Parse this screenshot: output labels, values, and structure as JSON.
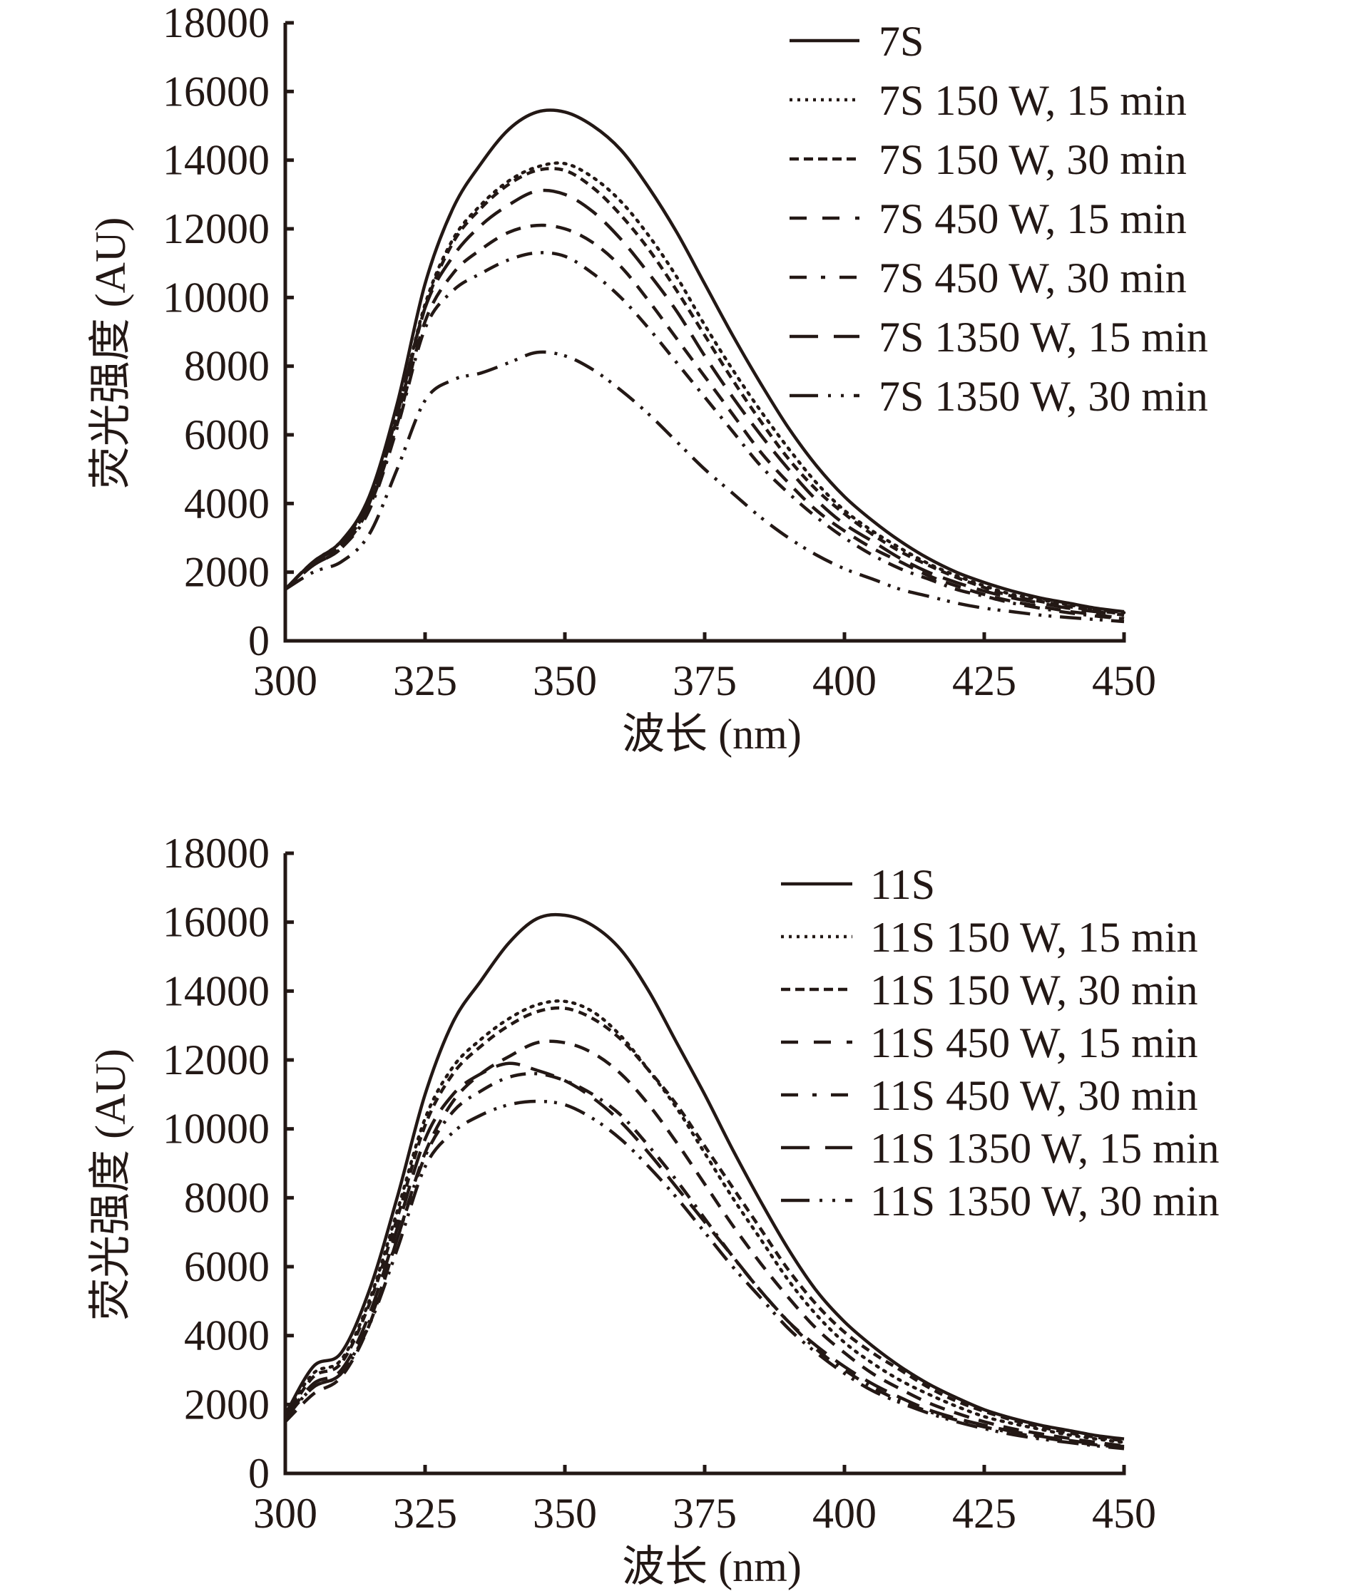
{
  "chart_data": [
    {
      "type": "line",
      "title": "",
      "xlabel": "波长 (nm)",
      "ylabel": "荧光强度 (AU)",
      "xlim": [
        300,
        450
      ],
      "ylim": [
        0,
        18000
      ],
      "xticks": [
        "300",
        "325",
        "350",
        "375",
        "400",
        "425",
        "450"
      ],
      "yticks": [
        "0",
        "2000",
        "4000",
        "6000",
        "8000",
        "10000",
        "12000",
        "14000",
        "16000",
        "18000"
      ],
      "grid": false,
      "legend_position": "top-right",
      "x": [
        300,
        305,
        310,
        315,
        320,
        325,
        330,
        335,
        340,
        345,
        350,
        355,
        360,
        365,
        370,
        375,
        380,
        385,
        390,
        395,
        400,
        405,
        410,
        415,
        420,
        425,
        430,
        435,
        440,
        445,
        450
      ],
      "series": [
        {
          "name": "7S",
          "style": "solid",
          "values": [
            1500,
            2300,
            2900,
            4200,
            6900,
            10400,
            12600,
            13900,
            14900,
            15400,
            15400,
            15000,
            14300,
            13200,
            11900,
            10400,
            8900,
            7500,
            6200,
            5100,
            4200,
            3500,
            2900,
            2400,
            2000,
            1700,
            1450,
            1250,
            1100,
            950,
            850
          ]
        },
        {
          "name": "7S 150 W, 15 min",
          "style": "dotted",
          "values": [
            1500,
            2300,
            2900,
            4100,
            6600,
            9800,
            11700,
            12700,
            13400,
            13800,
            13900,
            13500,
            12800,
            11800,
            10600,
            9200,
            7900,
            6700,
            5600,
            4600,
            3800,
            3200,
            2700,
            2250,
            1900,
            1600,
            1350,
            1200,
            1050,
            920,
            820
          ]
        },
        {
          "name": "7S 150 W, 30 min",
          "style": "short-dash",
          "values": [
            1500,
            2300,
            2800,
            4000,
            6500,
            9700,
            11600,
            12600,
            13300,
            13700,
            13700,
            13200,
            12400,
            11400,
            10200,
            8900,
            7600,
            6400,
            5300,
            4400,
            3700,
            3100,
            2600,
            2200,
            1850,
            1550,
            1300,
            1150,
            1000,
            880,
            780
          ]
        },
        {
          "name": "7S 450 W, 15 min",
          "style": "dash",
          "values": [
            1500,
            2200,
            2700,
            3900,
            6300,
            9300,
            10700,
            11400,
            11900,
            12100,
            12000,
            11600,
            10900,
            9900,
            8800,
            7700,
            6600,
            5500,
            4600,
            3800,
            3200,
            2700,
            2300,
            1900,
            1600,
            1350,
            1150,
            1000,
            860,
            760,
            650
          ]
        },
        {
          "name": "7S 450 W, 30 min",
          "style": "dash-dot",
          "values": [
            1500,
            2200,
            2700,
            3800,
            6200,
            9100,
            10200,
            10700,
            11100,
            11300,
            11200,
            10700,
            10000,
            9100,
            8100,
            7100,
            6100,
            5100,
            4300,
            3600,
            3000,
            2500,
            2100,
            1800,
            1500,
            1300,
            1100,
            950,
            820,
            720,
            640
          ]
        },
        {
          "name": "7S 1350 W, 15 min",
          "style": "long-dash",
          "values": [
            1500,
            2300,
            2800,
            4000,
            6600,
            9700,
            11200,
            12100,
            12700,
            13100,
            13000,
            12500,
            11700,
            10700,
            9600,
            8300,
            7100,
            6000,
            5000,
            4100,
            3400,
            2900,
            2400,
            2000,
            1700,
            1450,
            1250,
            1100,
            950,
            850,
            750
          ]
        },
        {
          "name": "7S 1350 W, 30 min",
          "style": "long-dash-dot-dot",
          "values": [
            1500,
            2000,
            2300,
            3100,
            5000,
            7000,
            7600,
            7800,
            8100,
            8400,
            8300,
            7900,
            7300,
            6600,
            5800,
            5000,
            4300,
            3600,
            3000,
            2500,
            2100,
            1800,
            1500,
            1300,
            1100,
            950,
            850,
            750,
            680,
            620,
            560
          ]
        }
      ]
    },
    {
      "type": "line",
      "title": "",
      "xlabel": "波长 (nm)",
      "ylabel": "荧光强度 (AU)",
      "xlim": [
        300,
        450
      ],
      "ylim": [
        0,
        18000
      ],
      "xticks": [
        "300",
        "325",
        "350",
        "375",
        "400",
        "425",
        "450"
      ],
      "yticks": [
        "0",
        "2000",
        "4000",
        "6000",
        "8000",
        "10000",
        "12000",
        "14000",
        "16000",
        "18000"
      ],
      "grid": false,
      "legend_position": "top-right",
      "x": [
        300,
        305,
        310,
        315,
        320,
        325,
        330,
        335,
        340,
        345,
        350,
        355,
        360,
        365,
        370,
        375,
        380,
        385,
        390,
        395,
        400,
        405,
        410,
        415,
        420,
        425,
        430,
        435,
        440,
        445,
        450
      ],
      "series": [
        {
          "name": "11S",
          "style": "solid",
          "values": [
            1700,
            3100,
            3500,
            5300,
            8000,
            11000,
            13100,
            14300,
            15400,
            16100,
            16200,
            15900,
            15200,
            14000,
            12500,
            11000,
            9400,
            7900,
            6500,
            5300,
            4400,
            3700,
            3100,
            2600,
            2200,
            1850,
            1600,
            1400,
            1250,
            1100,
            1000
          ]
        },
        {
          "name": "11S 150 W, 15 min",
          "style": "dotted",
          "values": [
            1700,
            2900,
            3300,
            5000,
            7600,
            10300,
            11800,
            12600,
            13200,
            13600,
            13700,
            13400,
            12700,
            11700,
            10600,
            9300,
            8000,
            6800,
            5600,
            4600,
            3800,
            3200,
            2700,
            2300,
            1950,
            1650,
            1450,
            1280,
            1120,
            1000,
            900
          ]
        },
        {
          "name": "11S 150 W, 30 min",
          "style": "short-dash",
          "values": [
            1600,
            2800,
            3200,
            4900,
            7400,
            10100,
            11600,
            12400,
            13000,
            13400,
            13500,
            13200,
            12600,
            11700,
            10700,
            9500,
            8300,
            7100,
            5900,
            4900,
            4100,
            3500,
            3000,
            2500,
            2100,
            1800,
            1550,
            1350,
            1180,
            1050,
            950
          ]
        },
        {
          "name": "11S 450 W, 15 min",
          "style": "dash",
          "values": [
            1500,
            2300,
            2800,
            4300,
            6800,
            9300,
            10800,
            11600,
            12100,
            12500,
            12500,
            12200,
            11600,
            10700,
            9600,
            8400,
            7200,
            6100,
            5100,
            4200,
            3500,
            2900,
            2450,
            2050,
            1750,
            1500,
            1300,
            1150,
            1020,
            900,
            800
          ]
        },
        {
          "name": "11S 450 W, 30 min",
          "style": "dash-dot",
          "values": [
            1600,
            2500,
            2900,
            4400,
            6800,
            9200,
            10500,
            11100,
            11500,
            11600,
            11400,
            11000,
            10400,
            9500,
            8500,
            7400,
            6300,
            5300,
            4400,
            3600,
            3000,
            2500,
            2100,
            1800,
            1550,
            1350,
            1180,
            1050,
            930,
            830,
            750
          ]
        },
        {
          "name": "11S 1350 W, 15 min",
          "style": "long-dash",
          "values": [
            1600,
            2600,
            3000,
            4600,
            7100,
            9700,
            11000,
            11600,
            11900,
            11700,
            11400,
            10900,
            10200,
            9300,
            8300,
            7300,
            6300,
            5300,
            4400,
            3700,
            3100,
            2600,
            2200,
            1850,
            1600,
            1400,
            1220,
            1080,
            960,
            860,
            780
          ]
        },
        {
          "name": "11S 1350 W, 30 min",
          "style": "long-dash-dot-dot",
          "values": [
            1600,
            2500,
            2900,
            4300,
            6500,
            8900,
            9900,
            10400,
            10700,
            10800,
            10700,
            10300,
            9700,
            8900,
            8000,
            7000,
            6000,
            5100,
            4200,
            3500,
            2900,
            2400,
            2050,
            1750,
            1500,
            1300,
            1130,
            1000,
            900,
            800,
            720
          ]
        }
      ]
    }
  ]
}
